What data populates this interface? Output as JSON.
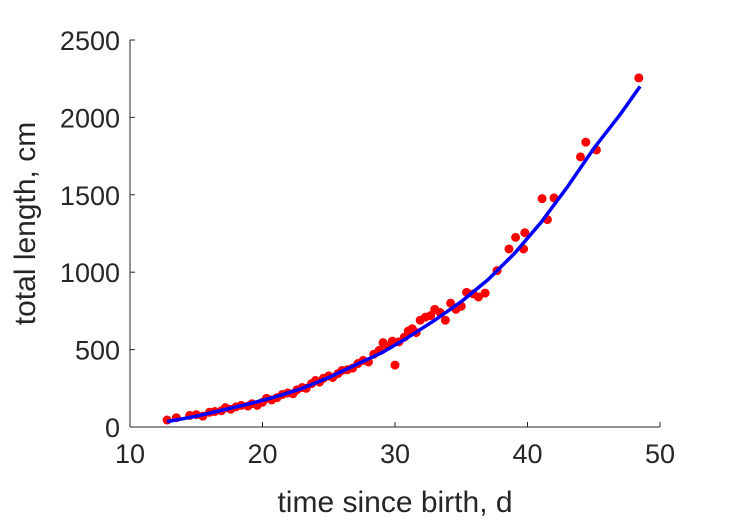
{
  "chart_data": {
    "type": "scatter",
    "xlabel": "time since birth, d",
    "ylabel": "total length, cm",
    "xlim": [
      10,
      50
    ],
    "ylim": [
      0,
      2500
    ],
    "xticks": [
      "10",
      "20",
      "30",
      "40",
      "50"
    ],
    "yticks": [
      "0",
      "500",
      "1000",
      "1500",
      "2000",
      "2500"
    ],
    "grid": false,
    "legend": "none",
    "series": [
      {
        "kind": "scatter",
        "color": "#ff0000",
        "points": [
          [
            12.8,
            45
          ],
          [
            13.5,
            60
          ],
          [
            14.5,
            75
          ],
          [
            15.0,
            80
          ],
          [
            15.5,
            70
          ],
          [
            16.0,
            95
          ],
          [
            16.4,
            100
          ],
          [
            16.9,
            105
          ],
          [
            17.2,
            125
          ],
          [
            17.6,
            115
          ],
          [
            18.0,
            130
          ],
          [
            18.4,
            140
          ],
          [
            18.9,
            135
          ],
          [
            19.2,
            150
          ],
          [
            19.6,
            140
          ],
          [
            20.0,
            160
          ],
          [
            20.3,
            185
          ],
          [
            20.7,
            175
          ],
          [
            21.1,
            190
          ],
          [
            21.5,
            210
          ],
          [
            21.9,
            220
          ],
          [
            22.3,
            215
          ],
          [
            22.6,
            240
          ],
          [
            23.0,
            255
          ],
          [
            23.3,
            250
          ],
          [
            23.7,
            280
          ],
          [
            24.0,
            300
          ],
          [
            24.3,
            290
          ],
          [
            24.6,
            315
          ],
          [
            25.0,
            330
          ],
          [
            25.3,
            320
          ],
          [
            25.7,
            345
          ],
          [
            26.0,
            365
          ],
          [
            26.4,
            370
          ],
          [
            26.8,
            380
          ],
          [
            27.2,
            410
          ],
          [
            27.6,
            430
          ],
          [
            28.0,
            420
          ],
          [
            28.4,
            470
          ],
          [
            28.8,
            495
          ],
          [
            29.1,
            545
          ],
          [
            29.4,
            520
          ],
          [
            29.8,
            555
          ],
          [
            30.0,
            400
          ],
          [
            30.3,
            550
          ],
          [
            30.7,
            580
          ],
          [
            31.0,
            620
          ],
          [
            31.3,
            635
          ],
          [
            31.6,
            610
          ],
          [
            31.9,
            690
          ],
          [
            32.3,
            710
          ],
          [
            32.7,
            720
          ],
          [
            33.0,
            760
          ],
          [
            33.4,
            740
          ],
          [
            33.8,
            690
          ],
          [
            34.2,
            800
          ],
          [
            34.6,
            760
          ],
          [
            35.0,
            780
          ],
          [
            35.4,
            870
          ],
          [
            35.9,
            860
          ],
          [
            36.3,
            840
          ],
          [
            36.8,
            865
          ],
          [
            37.7,
            1010
          ],
          [
            38.6,
            1150
          ],
          [
            39.1,
            1225
          ],
          [
            39.7,
            1150
          ],
          [
            39.8,
            1255
          ],
          [
            41.1,
            1475
          ],
          [
            41.5,
            1340
          ],
          [
            42.0,
            1480
          ],
          [
            44.0,
            1745
          ],
          [
            44.4,
            1840
          ],
          [
            45.2,
            1790
          ],
          [
            48.4,
            2255
          ]
        ]
      },
      {
        "kind": "line",
        "color": "#0000ff",
        "points": [
          [
            12.8,
            35
          ],
          [
            15,
            70
          ],
          [
            17,
            110
          ],
          [
            19,
            150
          ],
          [
            21,
            195
          ],
          [
            23,
            250
          ],
          [
            25,
            320
          ],
          [
            27,
            400
          ],
          [
            29,
            480
          ],
          [
            31,
            580
          ],
          [
            33,
            690
          ],
          [
            35,
            810
          ],
          [
            37,
            950
          ],
          [
            39,
            1120
          ],
          [
            41,
            1320
          ],
          [
            43,
            1550
          ],
          [
            45,
            1800
          ],
          [
            47,
            2020
          ],
          [
            48.5,
            2200
          ]
        ]
      }
    ]
  }
}
